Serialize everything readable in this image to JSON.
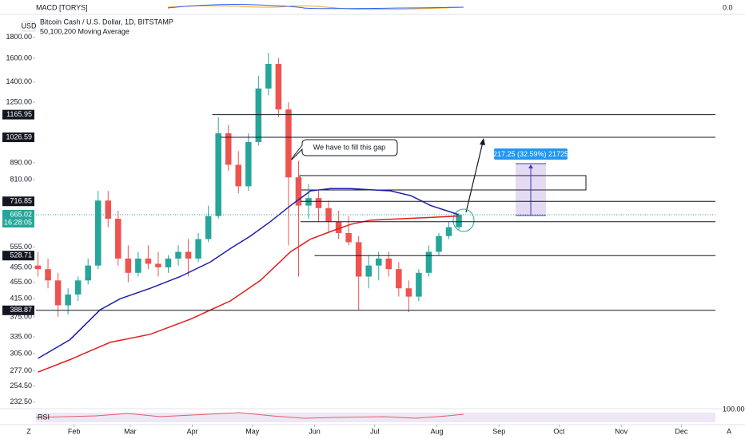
{
  "chart_data": {
    "type": "candlestick",
    "title": "Bitcoin Cash / U.S. Dollar, 1D, BITSTAMP",
    "subtitle": "50,100,200 Moving Average",
    "currency": "USD",
    "indicators": [
      "MACD [TORYS]",
      "RSI"
    ],
    "indicator_scale": [
      {
        "value": 0,
        "label": "0.0"
      },
      {
        "value": 100,
        "label": "100.00"
      }
    ],
    "log_scale": true,
    "grid": false,
    "up_color": "#26a69a",
    "down_color": "#ef5350",
    "xlim": [
      13,
      352
    ],
    "xticks": [
      {
        "value": 32,
        "label": "Feb"
      },
      {
        "value": 60,
        "label": "Mar"
      },
      {
        "value": 91,
        "label": "Apr"
      },
      {
        "value": 121,
        "label": "May"
      },
      {
        "value": 152,
        "label": "Jun"
      },
      {
        "value": 182,
        "label": "Jul"
      },
      {
        "value": 213,
        "label": "Aug"
      },
      {
        "value": 244,
        "label": "Sep"
      },
      {
        "value": 274,
        "label": "Oct"
      },
      {
        "value": 305,
        "label": "Nov"
      },
      {
        "value": 335,
        "label": "Dec"
      }
    ],
    "ylim": [
      226,
      2010
    ],
    "yticks": [
      {
        "value": 1800,
        "label": "1800.00"
      },
      {
        "value": 1600,
        "label": "1600.00"
      },
      {
        "value": 1400,
        "label": "1400.00"
      },
      {
        "value": 1250,
        "label": "1250.00"
      },
      {
        "value": 890,
        "label": "890.00"
      },
      {
        "value": 810,
        "label": "810.00"
      },
      {
        "value": 555,
        "label": "555.00"
      },
      {
        "value": 495,
        "label": "495.00"
      },
      {
        "value": 455,
        "label": "455.00"
      },
      {
        "value": 415,
        "label": "415.00"
      },
      {
        "value": 375,
        "label": "375.00"
      },
      {
        "value": 335,
        "label": "335.00"
      },
      {
        "value": 305,
        "label": "305.00"
      },
      {
        "value": 277,
        "label": "277.00"
      },
      {
        "value": 254.5,
        "label": "254.50"
      },
      {
        "value": 232.5,
        "label": "232.50"
      }
    ],
    "x": [
      14,
      19,
      24,
      29,
      34,
      39,
      44,
      49,
      54,
      59,
      64,
      69,
      74,
      79,
      84,
      89,
      94,
      99,
      104,
      109,
      114,
      119,
      124,
      129,
      134,
      139,
      144,
      149,
      154,
      159,
      164,
      169,
      174,
      179,
      184,
      189,
      194,
      199,
      204,
      209,
      214,
      219,
      224
    ],
    "open": [
      500,
      490,
      460,
      400,
      425,
      460,
      500,
      720,
      650,
      520,
      480,
      520,
      505,
      495,
      520,
      540,
      520,
      580,
      660,
      1050,
      880,
      780,
      1000,
      1350,
      1550,
      1200,
      820,
      700,
      730,
      690,
      640,
      600,
      570,
      470,
      500,
      520,
      490,
      440,
      420,
      480,
      540,
      590,
      620
    ],
    "high": [
      540,
      520,
      480,
      440,
      470,
      520,
      760,
      760,
      680,
      560,
      540,
      560,
      540,
      530,
      560,
      580,
      600,
      700,
      1150,
      1100,
      950,
      1050,
      1450,
      1650,
      1600,
      1250,
      900,
      790,
      760,
      720,
      680,
      660,
      590,
      530,
      540,
      540,
      510,
      460,
      490,
      560,
      600,
      640,
      670
    ],
    "low": [
      470,
      440,
      375,
      380,
      410,
      450,
      490,
      620,
      500,
      455,
      470,
      490,
      470,
      480,
      500,
      470,
      510,
      570,
      650,
      850,
      750,
      760,
      980,
      1300,
      1150,
      560,
      470,
      650,
      640,
      600,
      580,
      560,
      390,
      440,
      460,
      470,
      420,
      385,
      410,
      470,
      530,
      580,
      610
    ],
    "close": [
      490,
      460,
      400,
      425,
      460,
      500,
      720,
      650,
      520,
      480,
      520,
      505,
      495,
      520,
      540,
      520,
      580,
      660,
      1050,
      880,
      780,
      1000,
      1350,
      1550,
      1200,
      820,
      700,
      730,
      690,
      640,
      600,
      570,
      470,
      500,
      520,
      490,
      440,
      420,
      480,
      540,
      590,
      620,
      665
    ],
    "series": [
      {
        "color": "#1c1faa",
        "x": [
          14,
          30,
          45,
          55,
          70,
          85,
          100,
          110,
          120,
          130,
          140,
          150,
          160,
          170,
          180,
          190,
          200,
          210,
          224
        ],
        "values": [
          297,
          330,
          390,
          415,
          440,
          470,
          510,
          550,
          590,
          640,
          700,
          760,
          770,
          770,
          765,
          760,
          740,
          700,
          665
        ]
      },
      {
        "color": "#e01e1e",
        "x": [
          14,
          30,
          50,
          70,
          90,
          110,
          125,
          140,
          150,
          160,
          170,
          180,
          195,
          210,
          224
        ],
        "values": [
          275,
          295,
          325,
          340,
          370,
          410,
          460,
          540,
          580,
          605,
          630,
          645,
          650,
          655,
          660
        ]
      }
    ],
    "levels": [
      {
        "value": 1165.95,
        "start": 101
      },
      {
        "value": 1026.59,
        "start": 105
      },
      {
        "value": 716.85,
        "start": 145
      },
      {
        "value": 639.57,
        "start": 145
      },
      {
        "value": 528.71,
        "start": 152
      },
      {
        "value": 388.87,
        "start": 13
      }
    ],
    "last_price": 665.02,
    "countdown": "16:28:05",
    "annotation": "We have to fill this gap",
    "measure_label": "217.25 (32.59%) 21725"
  }
}
